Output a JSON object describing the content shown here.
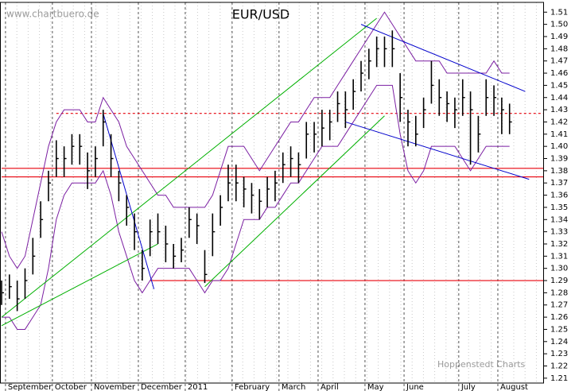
{
  "chart_data": {
    "type": "ohlc",
    "title": "EUR/USD",
    "watermark": "www.chartbuero.de",
    "source": "Hoppenstedt Charts",
    "categories": [
      null,
      "September",
      null,
      null,
      null,
      null,
      null,
      "October",
      null,
      null,
      null,
      null,
      "November",
      null,
      null,
      null,
      null,
      null,
      "December",
      null,
      null,
      null,
      null,
      null,
      "2011",
      null,
      null,
      null,
      null,
      null,
      "February",
      null,
      null,
      null,
      null,
      null,
      "March",
      null,
      null,
      null,
      null,
      "April",
      null,
      null,
      null,
      null,
      null,
      "May",
      null,
      null,
      null,
      null,
      "June",
      null,
      null,
      null,
      null,
      null,
      null,
      "July",
      null,
      null,
      null,
      null,
      "August",
      null
    ],
    "high": [
      1.29,
      1.295,
      1.29,
      1.3,
      1.325,
      1.355,
      1.38,
      1.405,
      1.4,
      1.41,
      1.41,
      1.395,
      1.4,
      1.43,
      1.41,
      1.38,
      1.36,
      1.345,
      1.315,
      1.34,
      1.345,
      1.335,
      1.32,
      1.325,
      1.35,
      1.345,
      1.315,
      1.345,
      1.36,
      1.385,
      1.385,
      1.375,
      1.37,
      1.365,
      1.375,
      1.38,
      1.395,
      1.4,
      1.395,
      1.42,
      1.42,
      1.43,
      1.43,
      1.445,
      1.445,
      1.455,
      1.47,
      1.48,
      1.49,
      1.49,
      1.495,
      1.46,
      1.43,
      1.425,
      1.44,
      1.47,
      1.455,
      1.445,
      1.44,
      1.455,
      1.445,
      1.425,
      1.455,
      1.45,
      1.44,
      1.435
    ],
    "low": [
      1.27,
      1.275,
      1.265,
      1.275,
      1.295,
      1.325,
      1.355,
      1.375,
      1.375,
      1.385,
      1.385,
      1.365,
      1.375,
      1.4,
      1.375,
      1.355,
      1.335,
      1.315,
      1.29,
      1.31,
      1.32,
      1.305,
      1.3,
      1.305,
      1.325,
      1.32,
      1.288,
      1.31,
      1.335,
      1.355,
      1.355,
      1.35,
      1.345,
      1.34,
      1.35,
      1.355,
      1.37,
      1.375,
      1.37,
      1.39,
      1.395,
      1.4,
      1.405,
      1.42,
      1.415,
      1.43,
      1.445,
      1.455,
      1.465,
      1.465,
      1.465,
      1.42,
      1.4,
      1.4,
      1.415,
      1.435,
      1.425,
      1.42,
      1.415,
      1.425,
      1.385,
      1.395,
      1.425,
      1.425,
      1.41,
      1.41
    ],
    "close": [
      1.28,
      1.285,
      1.275,
      1.29,
      1.31,
      1.34,
      1.37,
      1.39,
      1.39,
      1.4,
      1.4,
      1.38,
      1.39,
      1.42,
      1.39,
      1.37,
      1.35,
      1.33,
      1.3,
      1.33,
      1.33,
      1.32,
      1.31,
      1.315,
      1.34,
      1.335,
      1.295,
      1.33,
      1.35,
      1.37,
      1.37,
      1.365,
      1.36,
      1.355,
      1.365,
      1.37,
      1.385,
      1.39,
      1.385,
      1.41,
      1.41,
      1.415,
      1.42,
      1.435,
      1.43,
      1.445,
      1.46,
      1.47,
      1.48,
      1.48,
      1.48,
      1.44,
      1.42,
      1.41,
      1.43,
      1.45,
      1.44,
      1.435,
      1.43,
      1.44,
      1.43,
      1.41,
      1.44,
      1.44,
      1.43,
      1.42
    ],
    "color": "#000000",
    "upper_band": [
      1.33,
      1.31,
      1.3,
      1.31,
      1.34,
      1.37,
      1.4,
      1.42,
      1.43,
      1.43,
      1.43,
      1.42,
      1.42,
      1.44,
      1.43,
      1.42,
      1.4,
      1.39,
      1.38,
      1.37,
      1.36,
      1.36,
      1.35,
      1.35,
      1.35,
      1.35,
      1.35,
      1.36,
      1.38,
      1.4,
      1.4,
      1.4,
      1.39,
      1.38,
      1.39,
      1.4,
      1.41,
      1.42,
      1.42,
      1.43,
      1.44,
      1.44,
      1.44,
      1.45,
      1.46,
      1.47,
      1.48,
      1.49,
      1.5,
      1.51,
      1.5,
      1.49,
      1.48,
      1.47,
      1.47,
      1.47,
      1.47,
      1.46,
      1.46,
      1.46,
      1.46,
      1.46,
      1.46,
      1.47,
      1.46,
      1.46
    ],
    "lower_band": [
      1.26,
      1.26,
      1.25,
      1.25,
      1.26,
      1.27,
      1.3,
      1.34,
      1.36,
      1.37,
      1.37,
      1.37,
      1.37,
      1.38,
      1.36,
      1.33,
      1.31,
      1.29,
      1.28,
      1.29,
      1.3,
      1.3,
      1.3,
      1.3,
      1.3,
      1.29,
      1.28,
      1.29,
      1.29,
      1.3,
      1.32,
      1.34,
      1.34,
      1.34,
      1.35,
      1.35,
      1.36,
      1.37,
      1.37,
      1.38,
      1.39,
      1.4,
      1.4,
      1.4,
      1.41,
      1.42,
      1.43,
      1.44,
      1.45,
      1.45,
      1.45,
      1.41,
      1.38,
      1.37,
      1.38,
      1.4,
      1.4,
      1.4,
      1.4,
      1.39,
      1.38,
      1.39,
      1.4,
      1.4,
      1.4,
      1.4
    ],
    "band_color": "#7b1fa2",
    "hlines": [
      {
        "value": 1.29,
        "color": "#e8000b",
        "from": 19,
        "dashed": false
      },
      {
        "value": 1.375,
        "color": "#e8000b",
        "from": 0,
        "dashed": false
      },
      {
        "value": 1.382,
        "color": "#e8000b",
        "from": 0,
        "dashed": false
      },
      {
        "value": 1.427,
        "color": "#e8000b",
        "from": 7,
        "dashed": true
      }
    ],
    "trendlines": [
      {
        "color": "#00b000",
        "x": [
          0,
          48
        ],
        "y": [
          1.26,
          1.505
        ]
      },
      {
        "color": "#00b000",
        "x": [
          0,
          20
        ],
        "y": [
          1.253,
          1.32
        ]
      },
      {
        "color": "#00b000",
        "x": [
          26,
          49
        ],
        "y": [
          1.285,
          1.425
        ]
      },
      {
        "color": "#0000cc",
        "x": [
          13,
          19.5
        ],
        "y": [
          1.427,
          1.283
        ]
      },
      {
        "color": "#0000cc",
        "x": [
          46,
          67
        ],
        "y": [
          1.5,
          1.445
        ]
      },
      {
        "color": "#0000cc",
        "x": [
          44,
          67.5
        ],
        "y": [
          1.42,
          1.373
        ]
      }
    ],
    "ylim": [
      1.206,
      1.518
    ],
    "yticks": [
      1.21,
      1.22,
      1.23,
      1.24,
      1.25,
      1.26,
      1.27,
      1.28,
      1.29,
      {
        "value": 1.3,
        "label": "1.30"
      },
      1.31,
      1.32,
      1.33,
      1.34,
      1.35,
      1.36,
      1.37,
      1.38,
      1.39,
      {
        "value": 1.4,
        "label": "1.40"
      },
      1.41,
      1.42,
      1.43,
      1.44,
      1.45,
      1.46,
      1.47,
      1.48,
      1.49,
      {
        "value": 1.5,
        "label": "1.50"
      },
      1.51
    ]
  }
}
